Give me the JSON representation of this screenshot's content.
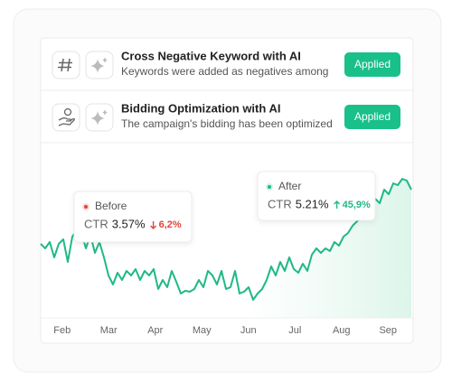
{
  "cards": [
    {
      "title": "Cross Negative Keyword with AI",
      "description": "Keywords were added as negatives among",
      "button": "Applied"
    },
    {
      "title": "Bidding Optimization with AI",
      "description": "The campaign's bidding has been optimized",
      "button": "Applied"
    }
  ],
  "chart_data": {
    "type": "line",
    "x_labels": [
      "Feb",
      "Mar",
      "Apr",
      "May",
      "Jun",
      "Jul",
      "Aug",
      "Sep"
    ],
    "ylim": [
      0,
      220
    ],
    "color": "#1fb987",
    "values": [
      110,
      105,
      112,
      95,
      110,
      115,
      90,
      118,
      125,
      122,
      105,
      120,
      100,
      112,
      95,
      75,
      65,
      78,
      70,
      80,
      75,
      82,
      70,
      80,
      75,
      82,
      60,
      70,
      62,
      80,
      68,
      55,
      58,
      57,
      60,
      70,
      62,
      80,
      75,
      65,
      80,
      60,
      62,
      80,
      55,
      57,
      62,
      48,
      55,
      60,
      70,
      85,
      75,
      90,
      80,
      95,
      82,
      78,
      88,
      80,
      98,
      105,
      100,
      105,
      102,
      112,
      108,
      118,
      122,
      130,
      135,
      140,
      152,
      158,
      160,
      155,
      170,
      165,
      177,
      175,
      182,
      180,
      170
    ],
    "annotations": [
      {
        "label": "Before",
        "metric": "CTR",
        "value": "3.57%",
        "change": "6,2%",
        "color": "#e0453a"
      },
      {
        "label": "After",
        "metric": "CTR",
        "value": "5.21%",
        "change": "45,9%",
        "color": "#1fb987"
      }
    ]
  }
}
